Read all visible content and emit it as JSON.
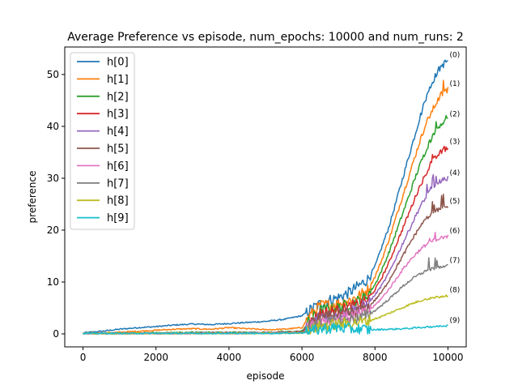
{
  "chart_data": {
    "type": "line",
    "title": "Average Preference vs episode, num_epochs: 10000 and num_runs: 2",
    "xlabel": "episode",
    "ylabel": "preference",
    "xlim": [
      -500,
      10500
    ],
    "ylim": [
      -2.5,
      55.3
    ],
    "xticks": [
      0,
      2000,
      4000,
      6000,
      8000,
      10000
    ],
    "yticks": [
      0,
      10,
      20,
      30,
      40,
      50
    ],
    "legend_position": "upper-left",
    "grid": false,
    "series": [
      {
        "name": "h[0]",
        "end_label": "(0)",
        "color": "#1f77b4",
        "points": [
          [
            0,
            0.2
          ],
          [
            500,
            0.5
          ],
          [
            1000,
            0.9
          ],
          [
            1500,
            1.2
          ],
          [
            2000,
            1.4
          ],
          [
            2500,
            1.7
          ],
          [
            3000,
            1.9
          ],
          [
            3500,
            1.8
          ],
          [
            4000,
            2.0
          ],
          [
            4500,
            2.2
          ],
          [
            5000,
            2.4
          ],
          [
            5500,
            2.8
          ],
          [
            6000,
            3.5
          ],
          [
            6300,
            5.0
          ],
          [
            6600,
            6.2
          ],
          [
            7000,
            7.0
          ],
          [
            7300,
            8.0
          ],
          [
            7600,
            9.5
          ],
          [
            7800,
            10.5
          ],
          [
            8000,
            13
          ],
          [
            8200,
            17
          ],
          [
            8400,
            21
          ],
          [
            8600,
            26
          ],
          [
            8800,
            31
          ],
          [
            9000,
            36
          ],
          [
            9200,
            41
          ],
          [
            9400,
            45.5
          ],
          [
            9600,
            49
          ],
          [
            9800,
            51.5
          ],
          [
            10000,
            52.7
          ]
        ]
      },
      {
        "name": "h[1]",
        "end_label": "(1)",
        "color": "#ff7f0e",
        "points": [
          [
            0,
            0.1
          ],
          [
            500,
            0.2
          ],
          [
            1000,
            0.3
          ],
          [
            1500,
            0.5
          ],
          [
            2000,
            0.7
          ],
          [
            2500,
            0.9
          ],
          [
            3000,
            1.0
          ],
          [
            3500,
            0.9
          ],
          [
            4000,
            1.2
          ],
          [
            4500,
            1.0
          ],
          [
            5000,
            0.8
          ],
          [
            5500,
            0.9
          ],
          [
            6000,
            1.2
          ],
          [
            6200,
            3.5
          ],
          [
            6500,
            5.5
          ],
          [
            7000,
            5.8
          ],
          [
            7300,
            6.5
          ],
          [
            7600,
            7.5
          ],
          [
            7800,
            8.5
          ],
          [
            8000,
            11
          ],
          [
            8200,
            14.5
          ],
          [
            8400,
            18.5
          ],
          [
            8600,
            23
          ],
          [
            8800,
            27.5
          ],
          [
            9000,
            32
          ],
          [
            9200,
            36.5
          ],
          [
            9400,
            40.5
          ],
          [
            9600,
            43.5
          ],
          [
            9800,
            46
          ],
          [
            10000,
            47.2
          ]
        ]
      },
      {
        "name": "h[2]",
        "end_label": "(2)",
        "color": "#2ca02c",
        "points": [
          [
            0,
            0.1
          ],
          [
            1000,
            0.1
          ],
          [
            2000,
            0.2
          ],
          [
            3000,
            0.3
          ],
          [
            4000,
            0.3
          ],
          [
            5000,
            0.3
          ],
          [
            6000,
            0.5
          ],
          [
            6200,
            2.5
          ],
          [
            6500,
            4.5
          ],
          [
            7000,
            5.0
          ],
          [
            7300,
            5.8
          ],
          [
            7600,
            6.5
          ],
          [
            7800,
            7.5
          ],
          [
            8000,
            9.5
          ],
          [
            8200,
            12.5
          ],
          [
            8400,
            16
          ],
          [
            8600,
            20
          ],
          [
            8800,
            24
          ],
          [
            9000,
            28
          ],
          [
            9200,
            32
          ],
          [
            9400,
            35.5
          ],
          [
            9600,
            38.5
          ],
          [
            9800,
            40.5
          ],
          [
            10000,
            41.3
          ]
        ]
      },
      {
        "name": "h[3]",
        "end_label": "(3)",
        "color": "#d62728",
        "points": [
          [
            0,
            0.1
          ],
          [
            2000,
            0.1
          ],
          [
            4000,
            0.2
          ],
          [
            5000,
            0.2
          ],
          [
            6000,
            0.4
          ],
          [
            6200,
            2.0
          ],
          [
            6500,
            4.0
          ],
          [
            7000,
            4.5
          ],
          [
            7300,
            5.2
          ],
          [
            7600,
            5.8
          ],
          [
            7800,
            6.5
          ],
          [
            8000,
            8.5
          ],
          [
            8200,
            11
          ],
          [
            8400,
            14
          ],
          [
            8600,
            17.5
          ],
          [
            8800,
            21
          ],
          [
            9000,
            24.5
          ],
          [
            9200,
            28
          ],
          [
            9400,
            31
          ],
          [
            9600,
            33.5
          ],
          [
            9800,
            35
          ],
          [
            10000,
            36
          ]
        ]
      },
      {
        "name": "h[4]",
        "end_label": "(4)",
        "color": "#9467bd",
        "points": [
          [
            0,
            0.1
          ],
          [
            2000,
            0.1
          ],
          [
            4000,
            0.2
          ],
          [
            5000,
            0.2
          ],
          [
            6000,
            0.3
          ],
          [
            6200,
            1.8
          ],
          [
            6500,
            3.5
          ],
          [
            7000,
            4.0
          ],
          [
            7300,
            4.5
          ],
          [
            7600,
            5.0
          ],
          [
            7800,
            5.8
          ],
          [
            8000,
            7.5
          ],
          [
            8200,
            9.5
          ],
          [
            8400,
            12
          ],
          [
            8600,
            15
          ],
          [
            8800,
            18
          ],
          [
            9000,
            21
          ],
          [
            9200,
            24
          ],
          [
            9400,
            26.5
          ],
          [
            9600,
            28.5
          ],
          [
            9800,
            29.5
          ],
          [
            10000,
            30
          ]
        ]
      },
      {
        "name": "h[5]",
        "end_label": "(5)",
        "color": "#8c564b",
        "points": [
          [
            0,
            0.1
          ],
          [
            2000,
            0.1
          ],
          [
            4000,
            0.1
          ],
          [
            5000,
            0.2
          ],
          [
            6000,
            0.3
          ],
          [
            6200,
            1.5
          ],
          [
            6500,
            3.0
          ],
          [
            7000,
            3.5
          ],
          [
            7300,
            4.0
          ],
          [
            7600,
            4.4
          ],
          [
            7800,
            5.0
          ],
          [
            8000,
            6.5
          ],
          [
            8200,
            8.2
          ],
          [
            8400,
            10.5
          ],
          [
            8600,
            13
          ],
          [
            8800,
            15.5
          ],
          [
            9000,
            18
          ],
          [
            9200,
            20.3
          ],
          [
            9400,
            22.2
          ],
          [
            9600,
            23.5
          ],
          [
            9800,
            24.2
          ],
          [
            10000,
            24.5
          ]
        ]
      },
      {
        "name": "h[6]",
        "end_label": "(6)",
        "color": "#e377c2",
        "points": [
          [
            0,
            0.1
          ],
          [
            2000,
            0.1
          ],
          [
            4000,
            0.1
          ],
          [
            5000,
            0.2
          ],
          [
            6000,
            0.3
          ],
          [
            6200,
            1.2
          ],
          [
            6500,
            2.5
          ],
          [
            7000,
            3.0
          ],
          [
            7300,
            3.4
          ],
          [
            7600,
            3.8
          ],
          [
            7800,
            4.3
          ],
          [
            8000,
            5.5
          ],
          [
            8200,
            7
          ],
          [
            8400,
            8.8
          ],
          [
            8600,
            10.8
          ],
          [
            8800,
            12.8
          ],
          [
            9000,
            14.5
          ],
          [
            9200,
            16
          ],
          [
            9400,
            17.2
          ],
          [
            9600,
            18
          ],
          [
            9800,
            18.5
          ],
          [
            10000,
            18.8
          ]
        ]
      },
      {
        "name": "h[7]",
        "end_label": "(7)",
        "color": "#7f7f7f",
        "points": [
          [
            0,
            0.1
          ],
          [
            2000,
            0.1
          ],
          [
            4000,
            0.1
          ],
          [
            5000,
            0.1
          ],
          [
            6000,
            0.2
          ],
          [
            6200,
            1.0
          ],
          [
            6500,
            2.0
          ],
          [
            7000,
            2.5
          ],
          [
            7300,
            2.8
          ],
          [
            7600,
            3.1
          ],
          [
            7800,
            3.5
          ],
          [
            8000,
            4.5
          ],
          [
            8200,
            5.6
          ],
          [
            8400,
            6.8
          ],
          [
            8600,
            8.1
          ],
          [
            8800,
            9.4
          ],
          [
            9000,
            10.5
          ],
          [
            9200,
            11.4
          ],
          [
            9400,
            12.1
          ],
          [
            9600,
            12.6
          ],
          [
            9800,
            12.9
          ],
          [
            10000,
            13.1
          ]
        ]
      },
      {
        "name": "h[8]",
        "end_label": "(8)",
        "color": "#bcbd22",
        "points": [
          [
            0,
            0.1
          ],
          [
            2000,
            0.1
          ],
          [
            4000,
            0.1
          ],
          [
            5000,
            0.1
          ],
          [
            6000,
            0.2
          ],
          [
            6200,
            0.6
          ],
          [
            6500,
            1.5
          ],
          [
            7000,
            1.9
          ],
          [
            7300,
            2.1
          ],
          [
            7600,
            2.3
          ],
          [
            7800,
            2.5
          ],
          [
            8000,
            2.9
          ],
          [
            8200,
            3.4
          ],
          [
            8400,
            4.0
          ],
          [
            8600,
            4.6
          ],
          [
            8800,
            5.2
          ],
          [
            9000,
            5.8
          ],
          [
            9200,
            6.3
          ],
          [
            9400,
            6.7
          ],
          [
            9600,
            7.0
          ],
          [
            9800,
            7.2
          ],
          [
            10000,
            7.4
          ]
        ]
      },
      {
        "name": "h[9]",
        "end_label": "(9)",
        "color": "#17becf",
        "points": [
          [
            0,
            0.1
          ],
          [
            2000,
            0.1
          ],
          [
            4000,
            0.1
          ],
          [
            5000,
            0.1
          ],
          [
            6000,
            0.2
          ],
          [
            6300,
            0.6
          ],
          [
            6600,
            1.0
          ],
          [
            7000,
            1.2
          ],
          [
            7300,
            1.0
          ],
          [
            7600,
            0.9
          ],
          [
            7800,
            0.8
          ],
          [
            8000,
            0.8
          ],
          [
            8400,
            0.9
          ],
          [
            8800,
            1.0
          ],
          [
            9200,
            1.2
          ],
          [
            9600,
            1.4
          ],
          [
            10000,
            1.6
          ]
        ]
      }
    ]
  }
}
